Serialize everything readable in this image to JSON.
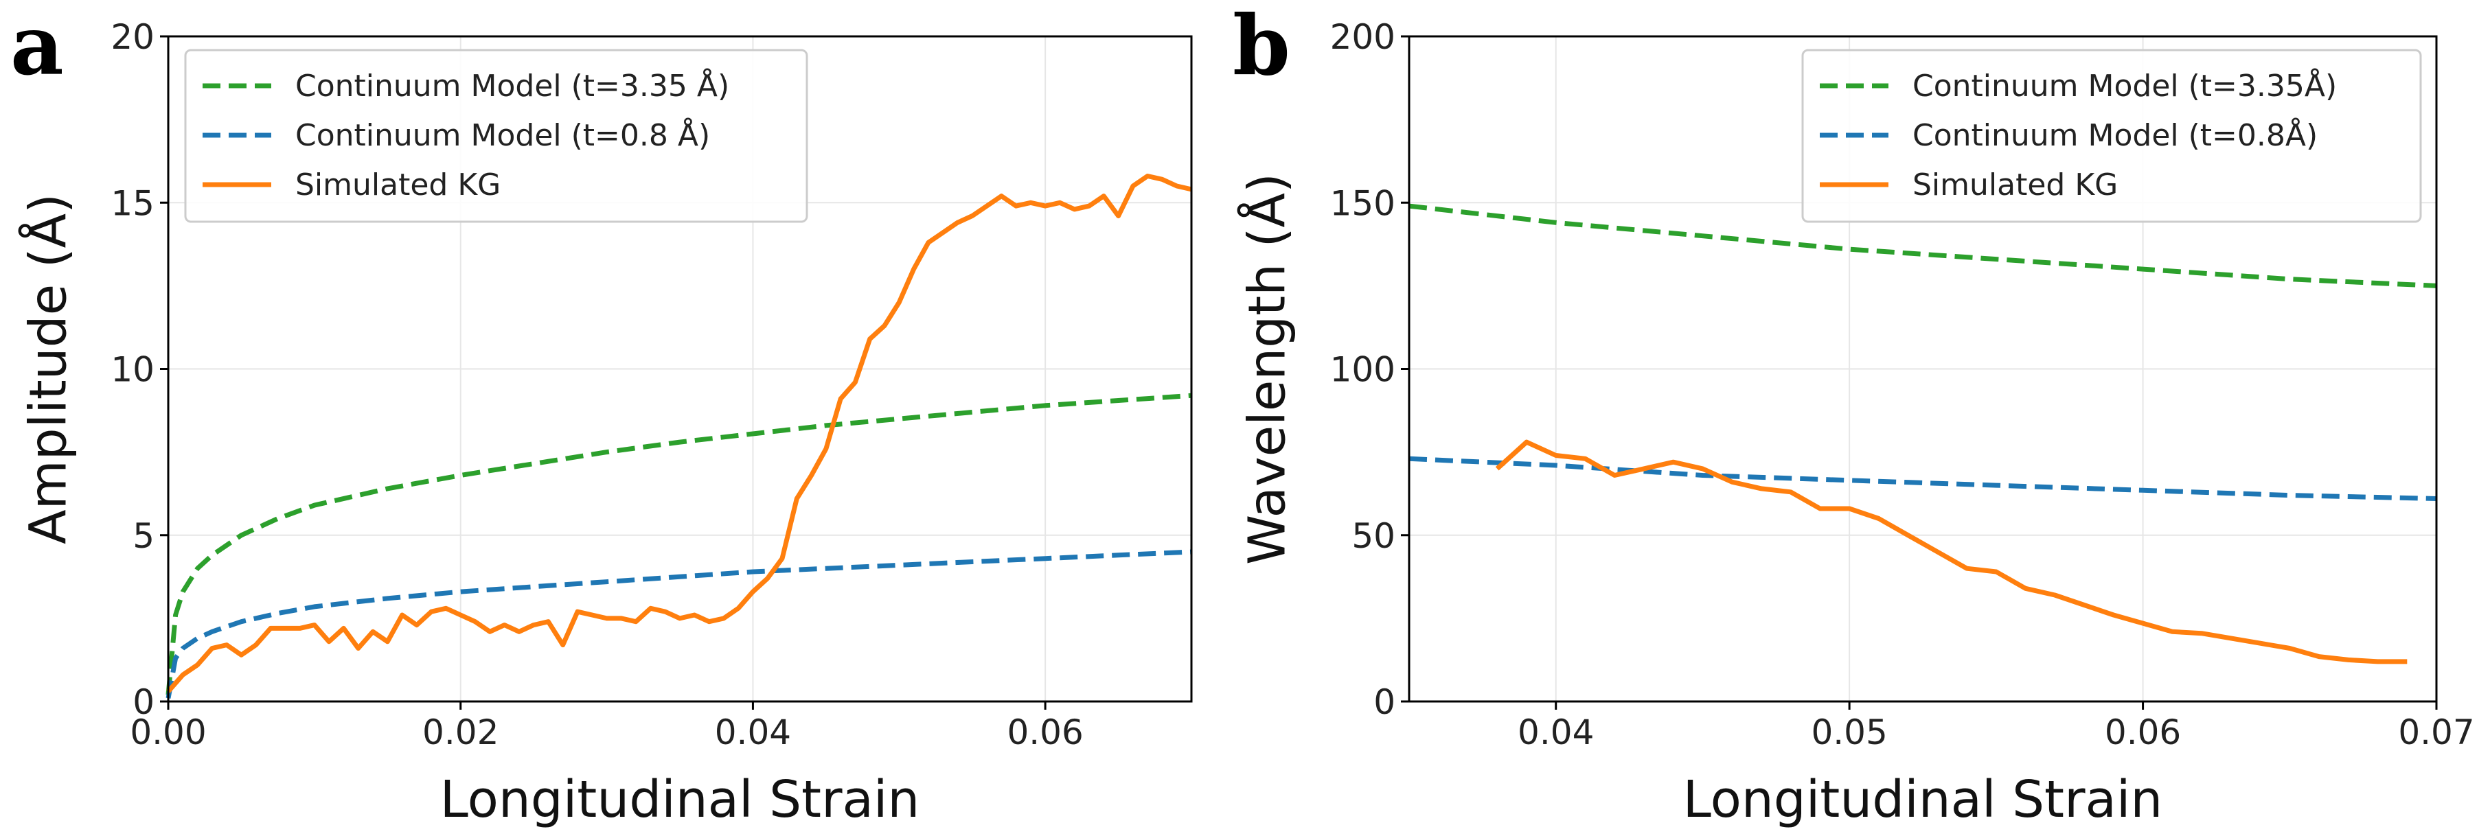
{
  "chart_data": [
    {
      "panel": "a",
      "type": "line",
      "xlabel": "Longitudinal Strain",
      "ylabel": "Amplitude (Å)",
      "xlim": [
        0.0,
        0.07
      ],
      "ylim": [
        0,
        20
      ],
      "xticks": [
        0.0,
        0.02,
        0.04,
        0.06
      ],
      "xtick_labels": [
        "0.00",
        "0.02",
        "0.04",
        "0.06"
      ],
      "yticks": [
        0,
        5,
        10,
        15,
        20
      ],
      "ytick_labels": [
        "0",
        "5",
        "10",
        "15",
        "20"
      ],
      "grid": true,
      "legend_position": "top-left",
      "series": [
        {
          "name": "Continuum Model (t=3.35 Å)",
          "color": "#2ca02c",
          "style": "dashed",
          "x": [
            0.0,
            0.0005,
            0.001,
            0.002,
            0.003,
            0.005,
            0.0075,
            0.01,
            0.015,
            0.02,
            0.025,
            0.03,
            0.035,
            0.04,
            0.045,
            0.05,
            0.055,
            0.06,
            0.065,
            0.07
          ],
          "y": [
            0.2,
            2.6,
            3.3,
            4.0,
            4.4,
            5.0,
            5.5,
            5.9,
            6.4,
            6.8,
            7.15,
            7.5,
            7.8,
            8.05,
            8.3,
            8.5,
            8.7,
            8.9,
            9.05,
            9.2
          ]
        },
        {
          "name": "Continuum Model (t=0.8 Å)",
          "color": "#1f77b4",
          "style": "dashed",
          "x": [
            0.0,
            0.0005,
            0.001,
            0.002,
            0.003,
            0.005,
            0.0075,
            0.01,
            0.015,
            0.02,
            0.025,
            0.03,
            0.035,
            0.04,
            0.045,
            0.05,
            0.055,
            0.06,
            0.065,
            0.07
          ],
          "y": [
            0.1,
            1.3,
            1.6,
            1.9,
            2.1,
            2.4,
            2.65,
            2.85,
            3.1,
            3.3,
            3.45,
            3.6,
            3.75,
            3.9,
            4.0,
            4.1,
            4.2,
            4.3,
            4.4,
            4.5
          ]
        },
        {
          "name": "Simulated KG",
          "color": "#ff7f0e",
          "style": "solid",
          "x": [
            0.0,
            0.001,
            0.002,
            0.003,
            0.004,
            0.005,
            0.006,
            0.007,
            0.008,
            0.009,
            0.01,
            0.011,
            0.012,
            0.013,
            0.014,
            0.015,
            0.016,
            0.017,
            0.018,
            0.019,
            0.02,
            0.021,
            0.022,
            0.023,
            0.024,
            0.025,
            0.026,
            0.027,
            0.028,
            0.029,
            0.03,
            0.031,
            0.032,
            0.033,
            0.034,
            0.035,
            0.036,
            0.037,
            0.038,
            0.039,
            0.04,
            0.041,
            0.042,
            0.043,
            0.044,
            0.045,
            0.046,
            0.047,
            0.048,
            0.049,
            0.05,
            0.051,
            0.052,
            0.053,
            0.054,
            0.055,
            0.056,
            0.057,
            0.058,
            0.059,
            0.06,
            0.061,
            0.062,
            0.063,
            0.064,
            0.065,
            0.066,
            0.067,
            0.068,
            0.069,
            0.07
          ],
          "y": [
            0.3,
            0.8,
            1.1,
            1.6,
            1.7,
            1.4,
            1.7,
            2.2,
            2.2,
            2.2,
            2.3,
            1.8,
            2.2,
            1.6,
            2.1,
            1.8,
            2.6,
            2.3,
            2.7,
            2.8,
            2.6,
            2.4,
            2.1,
            2.3,
            2.1,
            2.3,
            2.4,
            1.7,
            2.7,
            2.6,
            2.5,
            2.5,
            2.4,
            2.8,
            2.7,
            2.5,
            2.6,
            2.4,
            2.5,
            2.8,
            3.3,
            3.7,
            4.3,
            6.1,
            6.8,
            7.6,
            9.1,
            9.6,
            10.9,
            11.3,
            12.0,
            13.0,
            13.8,
            14.1,
            14.4,
            14.6,
            14.9,
            15.2,
            14.9,
            15.0,
            14.9,
            15.0,
            14.8,
            14.9,
            15.2,
            14.6,
            15.5,
            15.8,
            15.7,
            15.5,
            15.4
          ]
        }
      ]
    },
    {
      "panel": "b",
      "type": "line",
      "xlabel": "Longitudinal Strain",
      "ylabel": "Wavelength (Å)",
      "xlim": [
        0.035,
        0.07
      ],
      "ylim": [
        0,
        200
      ],
      "xticks": [
        0.04,
        0.05,
        0.06,
        0.07
      ],
      "xtick_labels": [
        "0.04",
        "0.05",
        "0.06",
        "0.07"
      ],
      "yticks": [
        0,
        50,
        100,
        150,
        200
      ],
      "ytick_labels": [
        "0",
        "50",
        "100",
        "150",
        "200"
      ],
      "grid": true,
      "legend_position": "top-right",
      "series": [
        {
          "name": "Continuum Model (t=3.35Å)",
          "color": "#2ca02c",
          "style": "dashed",
          "x": [
            0.035,
            0.04,
            0.045,
            0.05,
            0.055,
            0.06,
            0.065,
            0.07
          ],
          "y": [
            149,
            144,
            140,
            136,
            133,
            130,
            127,
            125
          ]
        },
        {
          "name": "Continuum Model (t=0.8Å)",
          "color": "#1f77b4",
          "style": "dashed",
          "x": [
            0.035,
            0.04,
            0.045,
            0.05,
            0.055,
            0.06,
            0.065,
            0.07
          ],
          "y": [
            73,
            71,
            68,
            66.5,
            65,
            63.5,
            62,
            61
          ]
        },
        {
          "name": "Simulated KG",
          "color": "#ff7f0e",
          "style": "solid",
          "x": [
            0.038,
            0.039,
            0.04,
            0.041,
            0.042,
            0.043,
            0.044,
            0.045,
            0.046,
            0.047,
            0.048,
            0.049,
            0.05,
            0.051,
            0.052,
            0.053,
            0.054,
            0.055,
            0.056,
            0.057,
            0.058,
            0.059,
            0.06,
            0.061,
            0.062,
            0.063,
            0.064,
            0.065,
            0.066,
            0.067,
            0.068,
            0.069
          ],
          "y": [
            70,
            78,
            74,
            73,
            68,
            70,
            72,
            70,
            66,
            64,
            63,
            58,
            58,
            55,
            50,
            45,
            40,
            39,
            34,
            32,
            29,
            26,
            23.5,
            21,
            20.5,
            19,
            17.5,
            16,
            13.5,
            12.5,
            12,
            12
          ]
        }
      ]
    }
  ]
}
